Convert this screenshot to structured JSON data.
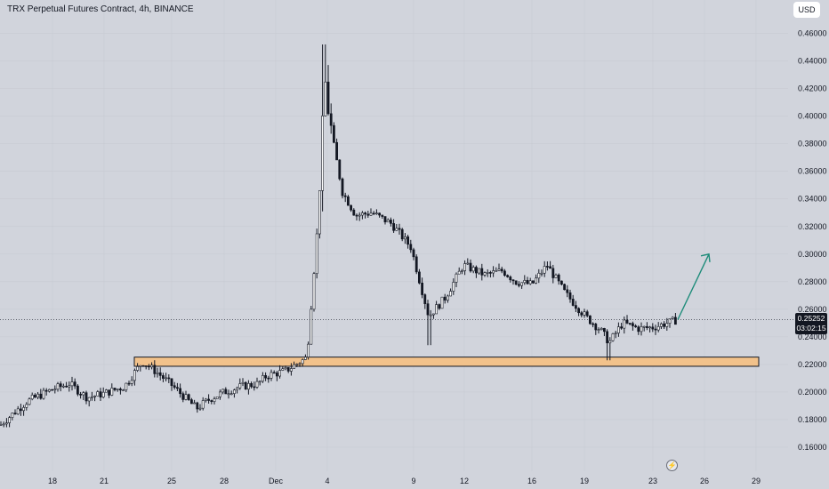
{
  "header": {
    "title": "TRX Perpetual Futures Contract, 4h, BINANCE",
    "currency_button": "USD"
  },
  "price_tag": {
    "price": "0.25252",
    "countdown": "03:02:15"
  },
  "colors": {
    "background": "#d1d4dc",
    "candle_body": "#131722",
    "support_zone": "#f2c28b",
    "support_border": "#131722",
    "arrow": "#1e8c7a",
    "text": "#131722"
  },
  "icons": {
    "replay": "lightning-bolt-icon"
  },
  "chart_data": {
    "type": "candlestick",
    "title": "",
    "xlabel": "",
    "ylabel": "",
    "ylim": [
      0.15,
      0.47
    ],
    "y_ticks": [
      "0.16000",
      "0.18000",
      "0.20000",
      "0.22000",
      "0.24000",
      "0.26000",
      "0.28000",
      "0.30000",
      "0.32000",
      "0.34000",
      "0.36000",
      "0.38000",
      "0.40000",
      "0.42000",
      "0.44000",
      "0.46000"
    ],
    "x_ticks": [
      "18",
      "21",
      "25",
      "28",
      "Dec",
      "4",
      "9",
      "12",
      "16",
      "19",
      "23",
      "26",
      "29"
    ],
    "last_price": 0.25252,
    "price_path": [
      [
        "16",
        0.176
      ],
      [
        "17",
        0.193
      ],
      [
        "18",
        0.202
      ],
      [
        "19",
        0.206
      ],
      [
        "20",
        0.196
      ],
      [
        "21",
        0.199
      ],
      [
        "22",
        0.204
      ],
      [
        "23",
        0.222
      ],
      [
        "24",
        0.214
      ],
      [
        "25",
        0.205
      ],
      [
        "26",
        0.188
      ],
      [
        "27",
        0.195
      ],
      [
        "28",
        0.2
      ],
      [
        "29",
        0.204
      ],
      [
        "30",
        0.206
      ],
      [
        "Dec 1",
        0.212
      ],
      [
        "Dec 2",
        0.215
      ],
      [
        "Dec 3",
        0.225
      ],
      [
        "Dec 3.5",
        0.32
      ],
      [
        "Dec 4",
        0.425
      ],
      [
        "Dec 4.5",
        0.39
      ],
      [
        "Dec 5",
        0.345
      ],
      [
        "Dec 6",
        0.328
      ],
      [
        "Dec 7",
        0.33
      ],
      [
        "Dec 8",
        0.322
      ],
      [
        "Dec 9",
        0.305
      ],
      [
        "Dec 10",
        0.255
      ],
      [
        "Dec 11",
        0.268
      ],
      [
        "Dec 12",
        0.292
      ],
      [
        "Dec 13",
        0.285
      ],
      [
        "Dec 14",
        0.288
      ],
      [
        "Dec 15",
        0.28
      ],
      [
        "Dec 16",
        0.278
      ],
      [
        "Dec 17",
        0.292
      ],
      [
        "Dec 18",
        0.272
      ],
      [
        "Dec 19",
        0.255
      ],
      [
        "Dec 20",
        0.245
      ],
      [
        "Dec 20.5",
        0.236
      ],
      [
        "Dec 21",
        0.25
      ],
      [
        "Dec 22",
        0.246
      ],
      [
        "Dec 23",
        0.247
      ],
      [
        "Dec 24",
        0.2525
      ]
    ],
    "support_zone": {
      "from_x": "23",
      "to_x": "Dec 30",
      "low": 0.219,
      "high": 0.225
    },
    "projection_arrow": {
      "from": [
        "Dec 24",
        0.2525
      ],
      "to": [
        "Dec 26",
        0.3
      ]
    },
    "last_price_line": 0.25252
  }
}
